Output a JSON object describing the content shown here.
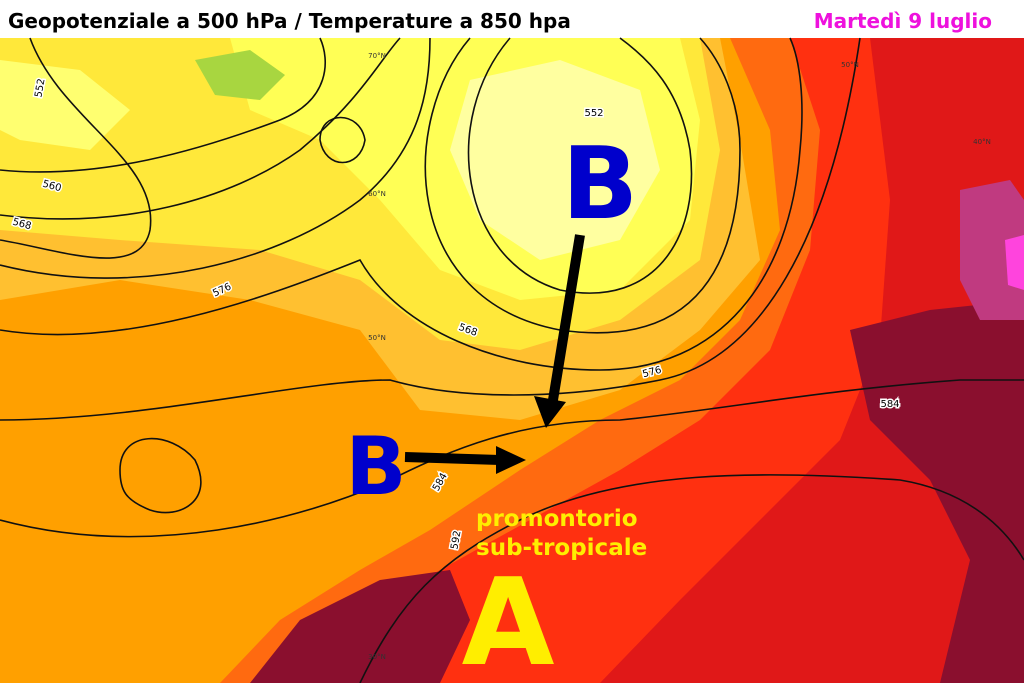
{
  "header": {
    "title": "Geopotenziale a 500 hPa / Temperature a 850 hpa",
    "date": "Martedì 9 luglio"
  },
  "annotations": {
    "low_north": "B",
    "low_west": "B",
    "high": "A",
    "high_caption": [
      "promontorio",
      "sub-tropicale"
    ]
  },
  "contour_labels": [
    "552",
    "560",
    "568",
    "576",
    "568",
    "552",
    "576",
    "584",
    "584",
    "592"
  ],
  "latitude_labels": [
    "70°N",
    "60°N",
    "50°N",
    "30°N",
    "50°N",
    "40°N"
  ]
}
